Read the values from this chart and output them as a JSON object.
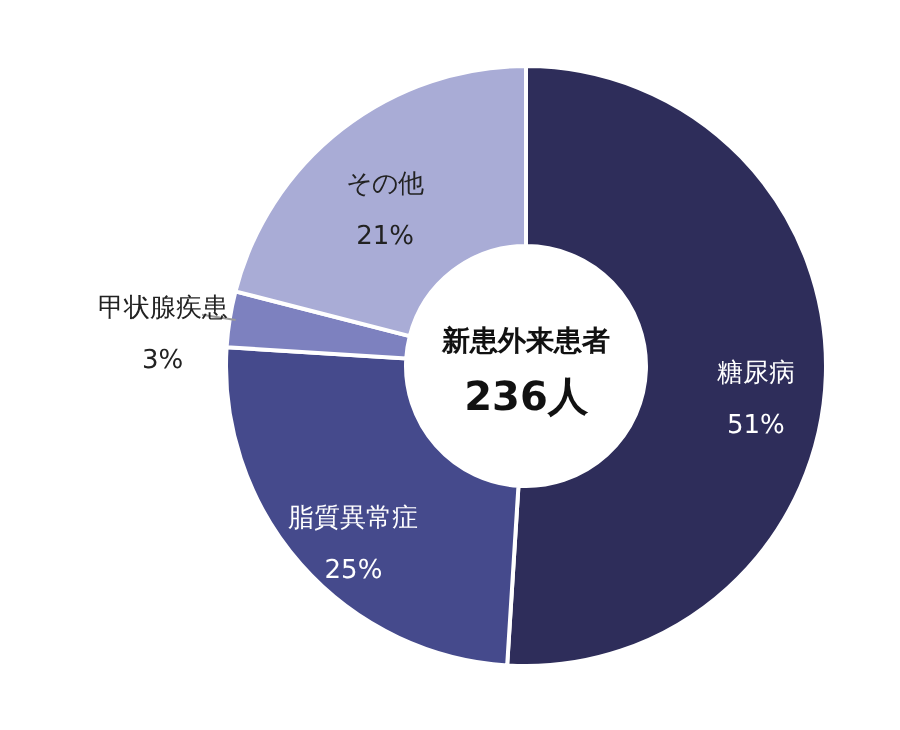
{
  "chart_data": {
    "type": "donut",
    "categories": [
      "糖尿病",
      "脂質異常症",
      "甲状腺疾患",
      "その他"
    ],
    "values": [
      51,
      25,
      3,
      21
    ],
    "colors": [
      "#2e2d5a",
      "#454a8c",
      "#7d81bf",
      "#a9acd6"
    ],
    "value_labels": [
      "51%",
      "25%",
      "3%",
      "21%"
    ],
    "annotations": [
      "新患外来患者",
      "236人"
    ]
  }
}
